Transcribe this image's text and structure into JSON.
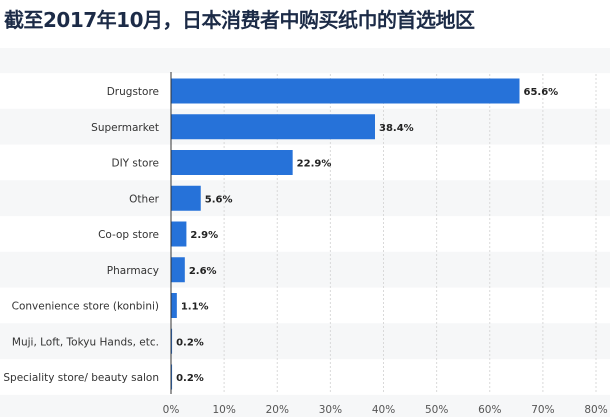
{
  "title": "截至2017年10月，日本消费者中购买纸巾的首选地区",
  "chart_data": {
    "type": "bar",
    "orientation": "horizontal",
    "categories": [
      "Drugstore",
      "Supermarket",
      "DIY store",
      "Other",
      "Co-op store",
      "Pharmacy",
      "Convenience store (konbini)",
      "Muji, Loft, Tokyu Hands, etc.",
      "Speciality store/ beauty salon"
    ],
    "values": [
      65.6,
      38.4,
      22.9,
      5.6,
      2.9,
      2.6,
      1.1,
      0.2,
      0.2
    ],
    "value_labels": [
      "65.6%",
      "38.4%",
      "22.9%",
      "5.6%",
      "2.9%",
      "2.6%",
      "1.1%",
      "0.2%",
      "0.2%"
    ],
    "xlim": [
      0,
      80
    ],
    "ticks": [
      0,
      10,
      20,
      30,
      40,
      50,
      60,
      70,
      80
    ],
    "tick_labels": [
      "0%",
      "10%",
      "20%",
      "30%",
      "40%",
      "50%",
      "60%",
      "70%",
      "80%"
    ],
    "bar_color": "#2672d9",
    "grid": true,
    "legend": "none"
  }
}
